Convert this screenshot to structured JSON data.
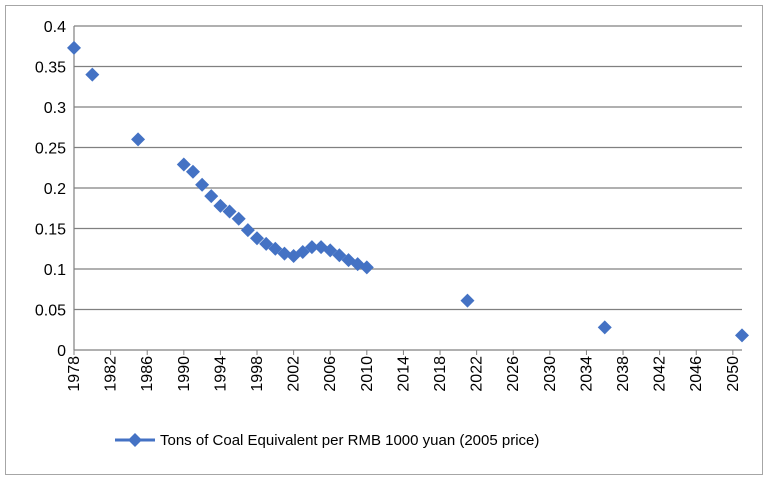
{
  "chart_data": {
    "type": "scatter",
    "title": "",
    "xlabel": "",
    "ylabel": "",
    "xlim": [
      1978,
      2051
    ],
    "ylim": [
      0,
      0.4
    ],
    "xticks": [
      "1978",
      "1982",
      "1986",
      "1990",
      "1994",
      "1998",
      "2002",
      "2006",
      "2010",
      "2014",
      "2018",
      "2022",
      "2026",
      "2030",
      "2034",
      "2038",
      "2042",
      "2046",
      "2050"
    ],
    "yticks": [
      "0",
      "0.05",
      "0.1",
      "0.15",
      "0.2",
      "0.25",
      "0.3",
      "0.35",
      "0.4"
    ],
    "grid": true,
    "legend_position": "bottom",
    "marker_color": "#4472c4",
    "grid_color": "#808080",
    "series": [
      {
        "name": "Tons of Coal Equivalent  per RMB 1000 yuan (2005 price)",
        "points": [
          [
            1978,
            0.373
          ],
          [
            1980,
            0.34
          ],
          [
            1985,
            0.26
          ],
          [
            1990,
            0.229
          ],
          [
            1991,
            0.22
          ],
          [
            1992,
            0.204
          ],
          [
            1993,
            0.19
          ],
          [
            1994,
            0.178
          ],
          [
            1995,
            0.171
          ],
          [
            1996,
            0.162
          ],
          [
            1997,
            0.148
          ],
          [
            1998,
            0.138
          ],
          [
            1999,
            0.131
          ],
          [
            2000,
            0.125
          ],
          [
            2001,
            0.119
          ],
          [
            2002,
            0.116
          ],
          [
            2003,
            0.121
          ],
          [
            2004,
            0.127
          ],
          [
            2005,
            0.127
          ],
          [
            2006,
            0.123
          ],
          [
            2007,
            0.117
          ],
          [
            2008,
            0.111
          ],
          [
            2009,
            0.106
          ],
          [
            2010,
            0.102
          ],
          [
            2021,
            0.061
          ],
          [
            2036,
            0.028
          ],
          [
            2051,
            0.018
          ]
        ]
      }
    ]
  }
}
